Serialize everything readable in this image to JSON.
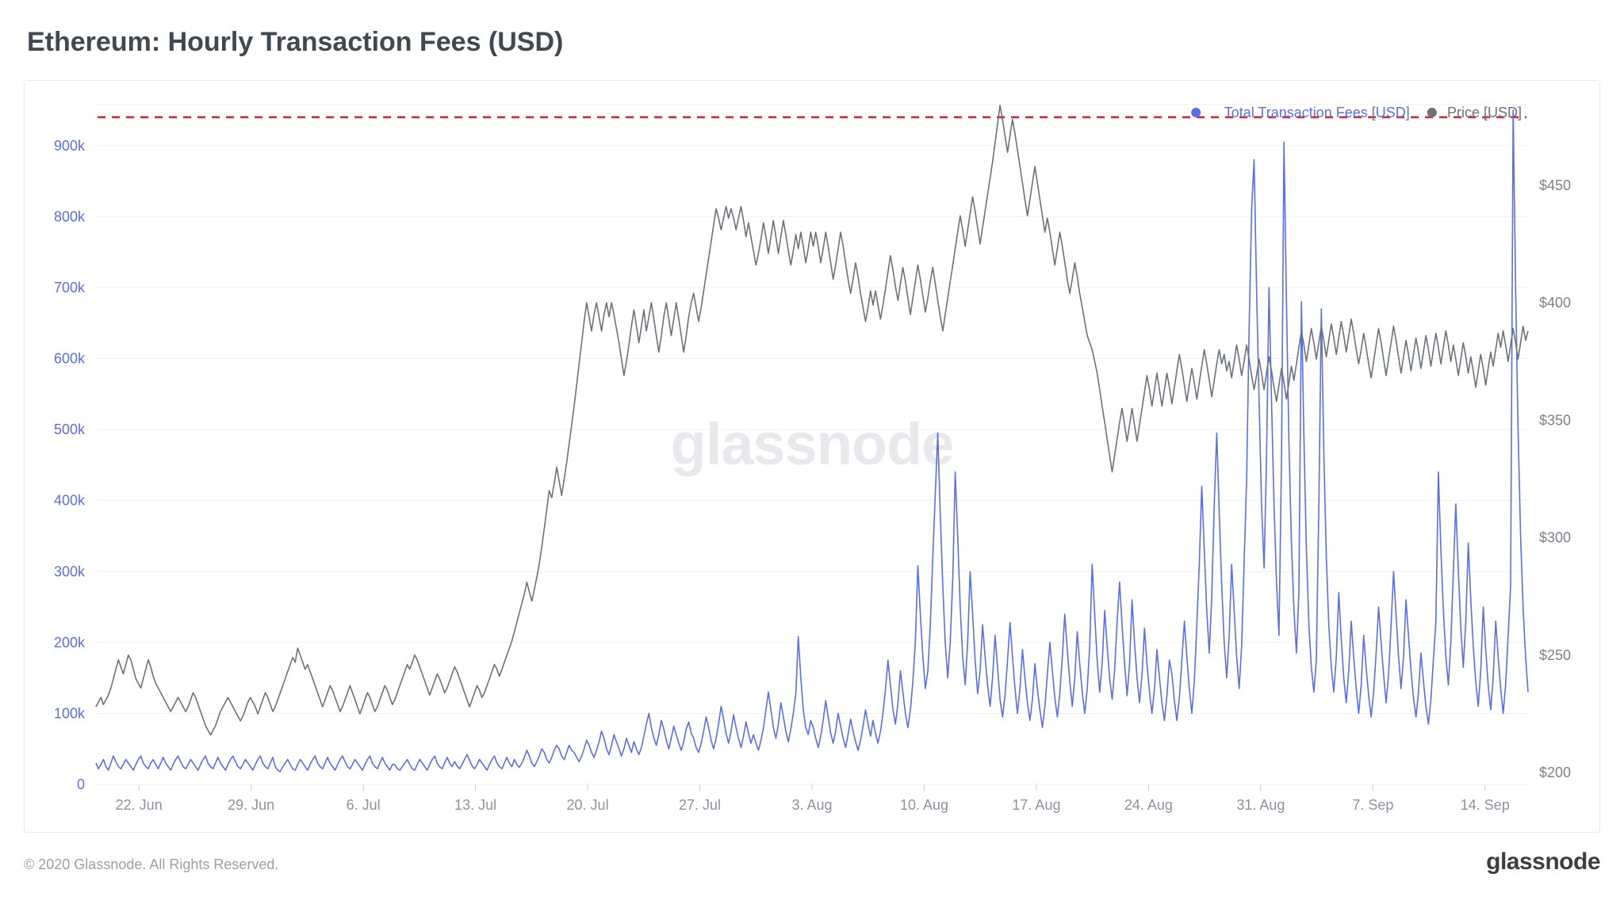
{
  "title": "Ethereum: Hourly Transaction Fees (USD)",
  "copyright": "© 2020 Glassnode. All Rights Reserved.",
  "brand": "glassnode",
  "watermark": "glassnode",
  "legend": {
    "series1": "Total Transaction Fees [USD]",
    "series2": "Price [USD]"
  },
  "chart": {
    "type": "line-dual-axis",
    "background_color": "#ffffff",
    "grid_color": "#f0f1f3",
    "axis_label_color": "#8b93a1",
    "axis_label_fontsize": 18,
    "left_axis": {
      "min": 0,
      "max": 960000,
      "ticks": [
        0,
        100000,
        200000,
        300000,
        400000,
        500000,
        600000,
        700000,
        800000,
        900000
      ],
      "tick_labels": [
        "0",
        "100k",
        "200k",
        "300k",
        "400k",
        "500k",
        "600k",
        "700k",
        "800k",
        "900k"
      ],
      "label_color": "#5b6fe0"
    },
    "right_axis": {
      "min": 195,
      "max": 485,
      "ticks": [
        200,
        250,
        300,
        350,
        400,
        450
      ],
      "tick_labels": [
        "$200",
        "$250",
        "$300",
        "$350",
        "$400",
        "$450"
      ],
      "label_color": "#7a828c"
    },
    "x_axis": {
      "labels": [
        "22. Jun",
        "29. Jun",
        "6. Jul",
        "13. Jul",
        "20. Jul",
        "27. Jul",
        "3. Aug",
        "10. Aug",
        "17. Aug",
        "24. Aug",
        "31. Aug",
        "7. Sep",
        "14. Sep"
      ]
    },
    "reference_line": {
      "value_left": 940000,
      "color": "#d9232e",
      "dash": "10,8",
      "width": 2.5
    },
    "series_fees": {
      "color": "#5b6fe0",
      "width": 1.6,
      "data": [
        30,
        22,
        28,
        35,
        25,
        20,
        30,
        40,
        32,
        25,
        22,
        28,
        35,
        30,
        25,
        20,
        28,
        35,
        40,
        30,
        25,
        22,
        30,
        35,
        28,
        22,
        30,
        38,
        30,
        25,
        20,
        28,
        35,
        40,
        32,
        25,
        22,
        28,
        35,
        30,
        25,
        20,
        28,
        35,
        40,
        30,
        25,
        22,
        30,
        38,
        30,
        25,
        20,
        28,
        35,
        40,
        32,
        25,
        22,
        28,
        35,
        30,
        25,
        20,
        28,
        35,
        40,
        30,
        25,
        22,
        30,
        38,
        25,
        20,
        18,
        25,
        30,
        35,
        28,
        22,
        20,
        28,
        35,
        30,
        25,
        20,
        28,
        35,
        40,
        30,
        25,
        22,
        30,
        38,
        30,
        25,
        20,
        28,
        35,
        40,
        32,
        25,
        22,
        28,
        35,
        30,
        25,
        20,
        28,
        35,
        40,
        30,
        25,
        22,
        30,
        38,
        30,
        25,
        20,
        28,
        28,
        22,
        20,
        25,
        30,
        35,
        28,
        22,
        20,
        28,
        35,
        30,
        25,
        20,
        28,
        35,
        40,
        30,
        25,
        22,
        30,
        38,
        30,
        25,
        32,
        26,
        22,
        28,
        35,
        42,
        34,
        26,
        22,
        28,
        35,
        30,
        25,
        20,
        28,
        35,
        40,
        30,
        25,
        22,
        30,
        38,
        30,
        25,
        35,
        28,
        24,
        30,
        38,
        48,
        40,
        30,
        25,
        32,
        40,
        50,
        45,
        35,
        30,
        38,
        48,
        55,
        50,
        40,
        35,
        45,
        55,
        48,
        45,
        38,
        32,
        40,
        50,
        62,
        55,
        45,
        38,
        48,
        60,
        75,
        65,
        50,
        42,
        55,
        70,
        60,
        50,
        40,
        50,
        65,
        55,
        45,
        60,
        50,
        42,
        52,
        68,
        85,
        100,
        80,
        65,
        55,
        70,
        90,
        78,
        62,
        50,
        65,
        82,
        70,
        58,
        48,
        60,
        78,
        88,
        72,
        65,
        52,
        45,
        58,
        75,
        95,
        80,
        62,
        50,
        65,
        85,
        110,
        92,
        72,
        58,
        75,
        98,
        80,
        65,
        52,
        68,
        88,
        72,
        58,
        70,
        58,
        48,
        62,
        80,
        105,
        130,
        105,
        80,
        65,
        85,
        115,
        95,
        75,
        60,
        78,
        100,
        128,
        208,
        150,
        105,
        80,
        70,
        90,
        80,
        65,
        52,
        68,
        90,
        118,
        95,
        72,
        58,
        75,
        100,
        82,
        65,
        52,
        70,
        92,
        75,
        60,
        48,
        62,
        82,
        105,
        85,
        68,
        90,
        72,
        58,
        75,
        100,
        135,
        175,
        140,
        105,
        85,
        115,
        160,
        130,
        100,
        80,
        105,
        145,
        200,
        308,
        240,
        180,
        135,
        160,
        225,
        320,
        410,
        495,
        380,
        280,
        200,
        150,
        200,
        290,
        440,
        350,
        250,
        180,
        140,
        200,
        300,
        240,
        175,
        128,
        160,
        225,
        180,
        140,
        110,
        150,
        210,
        165,
        120,
        95,
        125,
        175,
        228,
        180,
        135,
        100,
        135,
        190,
        150,
        115,
        90,
        120,
        170,
        135,
        105,
        80,
        110,
        155,
        200,
        160,
        122,
        95,
        128,
        180,
        240,
        190,
        145,
        110,
        150,
        215,
        170,
        130,
        100,
        135,
        195,
        310,
        240,
        175,
        130,
        170,
        245,
        195,
        150,
        120,
        160,
        230,
        285,
        225,
        170,
        125,
        170,
        260,
        200,
        150,
        115,
        155,
        220,
        170,
        130,
        100,
        135,
        190,
        150,
        115,
        90,
        125,
        175,
        155,
        118,
        90,
        122,
        175,
        230,
        180,
        135,
        100,
        145,
        225,
        310,
        420,
        330,
        245,
        185,
        265,
        395,
        495,
        385,
        280,
        200,
        150,
        210,
        310,
        245,
        180,
        135,
        195,
        310,
        430,
        640,
        810,
        880,
        700,
        540,
        395,
        305,
        460,
        700,
        540,
        395,
        285,
        210,
        460,
        905,
        680,
        480,
        340,
        245,
        185,
        270,
        680,
        490,
        330,
        225,
        165,
        130,
        175,
        395,
        670,
        470,
        320,
        225,
        165,
        130,
        180,
        270,
        205,
        150,
        115,
        160,
        230,
        180,
        135,
        100,
        140,
        210,
        165,
        125,
        95,
        130,
        185,
        250,
        200,
        155,
        115,
        155,
        225,
        300,
        240,
        180,
        135,
        180,
        260,
        210,
        160,
        122,
        95,
        130,
        185,
        145,
        110,
        85,
        120,
        175,
        230,
        440,
        330,
        245,
        180,
        140,
        200,
        300,
        395,
        300,
        220,
        165,
        230,
        340,
        260,
        195,
        145,
        110,
        160,
        250,
        190,
        140,
        105,
        150,
        230,
        180,
        135,
        100,
        140,
        210,
        280,
        950,
        700,
        500,
        350,
        250,
        180,
        130
      ]
    },
    "series_price": {
      "color": "#6b727a",
      "width": 1.6,
      "data": [
        228,
        230,
        232,
        229,
        231,
        233,
        236,
        240,
        244,
        248,
        245,
        242,
        246,
        250,
        248,
        244,
        240,
        238,
        236,
        240,
        244,
        248,
        245,
        241,
        238,
        236,
        234,
        232,
        230,
        228,
        226,
        228,
        230,
        232,
        230,
        228,
        226,
        228,
        231,
        234,
        232,
        229,
        226,
        223,
        220,
        218,
        216,
        218,
        220,
        223,
        226,
        228,
        230,
        232,
        230,
        228,
        226,
        224,
        222,
        224,
        227,
        230,
        232,
        230,
        228,
        225,
        228,
        231,
        234,
        232,
        229,
        226,
        228,
        231,
        234,
        237,
        240,
        243,
        246,
        249,
        247,
        253,
        250,
        247,
        244,
        246,
        243,
        240,
        237,
        234,
        231,
        228,
        231,
        234,
        237,
        235,
        232,
        229,
        226,
        228,
        231,
        234,
        237,
        234,
        231,
        228,
        225,
        228,
        231,
        234,
        232,
        229,
        226,
        228,
        231,
        234,
        237,
        235,
        232,
        229,
        231,
        234,
        237,
        240,
        243,
        246,
        244,
        247,
        250,
        248,
        245,
        242,
        239,
        236,
        233,
        236,
        239,
        242,
        240,
        237,
        234,
        236,
        239,
        242,
        245,
        243,
        240,
        237,
        234,
        231,
        228,
        231,
        234,
        237,
        235,
        232,
        234,
        237,
        240,
        243,
        246,
        244,
        241,
        244,
        247,
        250,
        253,
        256,
        260,
        264,
        268,
        272,
        276,
        281,
        277,
        273,
        278,
        283,
        289,
        296,
        304,
        312,
        320,
        317,
        323,
        330,
        324,
        318,
        325,
        332,
        340,
        348,
        356,
        365,
        374,
        383,
        392,
        400,
        394,
        388,
        395,
        400,
        394,
        388,
        395,
        400,
        394,
        400,
        395,
        389,
        383,
        376,
        369,
        375,
        382,
        390,
        397,
        390,
        383,
        390,
        397,
        388,
        394,
        400,
        393,
        386,
        379,
        386,
        394,
        400,
        393,
        386,
        393,
        400,
        393,
        386,
        379,
        386,
        394,
        400,
        404,
        398,
        392,
        398,
        405,
        412,
        419,
        426,
        433,
        440,
        436,
        431,
        436,
        441,
        436,
        440,
        436,
        431,
        436,
        441,
        435,
        428,
        434,
        428,
        422,
        416,
        421,
        427,
        434,
        428,
        421,
        428,
        435,
        428,
        421,
        428,
        435,
        429,
        422,
        416,
        422,
        429,
        423,
        430,
        424,
        417,
        423,
        430,
        424,
        430,
        424,
        417,
        423,
        430,
        424,
        417,
        410,
        416,
        423,
        430,
        424,
        417,
        410,
        404,
        410,
        417,
        411,
        404,
        398,
        392,
        398,
        405,
        399,
        405,
        399,
        393,
        399,
        406,
        413,
        420,
        414,
        407,
        401,
        408,
        415,
        409,
        402,
        395,
        402,
        409,
        416,
        410,
        403,
        396,
        402,
        409,
        415,
        408,
        401,
        394,
        388,
        395,
        402,
        409,
        416,
        423,
        430,
        437,
        431,
        424,
        431,
        438,
        445,
        439,
        432,
        425,
        432,
        439,
        446,
        453,
        460,
        468,
        476,
        484,
        478,
        471,
        464,
        471,
        478,
        472,
        465,
        458,
        451,
        444,
        437,
        444,
        451,
        458,
        451,
        444,
        437,
        430,
        436,
        430,
        423,
        416,
        423,
        430,
        424,
        417,
        410,
        404,
        410,
        417,
        411,
        404,
        398,
        392,
        386,
        383,
        380,
        375,
        370,
        363,
        356,
        349,
        342,
        335,
        328,
        335,
        342,
        349,
        355,
        348,
        341,
        348,
        355,
        348,
        341,
        348,
        355,
        362,
        369,
        363,
        356,
        363,
        370,
        363,
        356,
        363,
        370,
        364,
        357,
        364,
        371,
        378,
        372,
        365,
        358,
        365,
        372,
        366,
        359,
        366,
        373,
        380,
        374,
        367,
        360,
        367,
        374,
        380,
        374,
        378,
        371,
        375,
        368,
        375,
        382,
        376,
        369,
        375,
        382,
        376,
        369,
        363,
        369,
        376,
        370,
        363,
        370,
        377,
        371,
        364,
        358,
        365,
        372,
        366,
        359,
        366,
        373,
        367,
        374,
        381,
        388,
        382,
        375,
        382,
        389,
        383,
        376,
        383,
        390,
        384,
        377,
        384,
        391,
        385,
        378,
        385,
        392,
        386,
        379,
        386,
        393,
        387,
        380,
        374,
        380,
        387,
        381,
        374,
        368,
        375,
        382,
        389,
        383,
        376,
        369,
        376,
        383,
        390,
        384,
        377,
        370,
        377,
        384,
        378,
        371,
        378,
        385,
        379,
        372,
        379,
        386,
        380,
        373,
        380,
        387,
        381,
        374,
        381,
        388,
        382,
        375,
        382,
        376,
        369,
        376,
        383,
        377,
        370,
        377,
        371,
        364,
        371,
        378,
        372,
        365,
        372,
        379,
        373,
        380,
        387,
        381,
        388,
        382,
        375,
        382,
        389,
        383,
        376,
        383,
        390,
        384,
        388
      ]
    }
  }
}
